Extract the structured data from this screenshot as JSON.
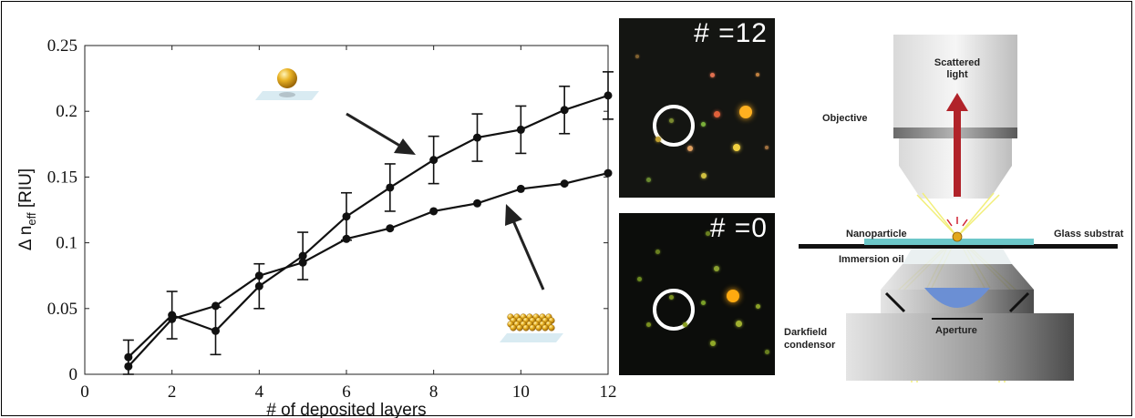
{
  "chart_data": {
    "type": "line",
    "title": "",
    "xlabel": "# of deposited layers",
    "ylabel": "Δ n",
    "ylabel_sub": "eff",
    "ylabel_unit": " [RIU]",
    "xlim": [
      0,
      12
    ],
    "ylim": [
      0,
      0.25
    ],
    "x_ticks": [
      0,
      2,
      4,
      6,
      8,
      10,
      12
    ],
    "x_tick_labels": [
      "0",
      "2",
      "4",
      "6",
      "8",
      "10",
      "12"
    ],
    "y_ticks": [
      0,
      0.05,
      0.1,
      0.15,
      0.2,
      0.25
    ],
    "y_tick_labels": [
      "0",
      "0.05",
      "0.1",
      "0.15",
      "0.2",
      "0.25"
    ],
    "grid": false,
    "series": [
      {
        "x": [
          1,
          2,
          3,
          4,
          5,
          6,
          7,
          8,
          9,
          10,
          11,
          12
        ],
        "y": [
          0.013,
          0.045,
          0.033,
          0.067,
          0.09,
          0.12,
          0.142,
          0.163,
          0.18,
          0.186,
          0.201,
          0.212
        ],
        "err": [
          0.013,
          0.018,
          0.018,
          0.017,
          0.018,
          0.018,
          0.018,
          0.018,
          0.018,
          0.018,
          0.018,
          0.018
        ]
      },
      {
        "x": [
          1,
          2,
          3,
          4,
          5,
          6,
          7,
          8,
          9,
          10,
          11,
          12
        ],
        "y": [
          0.006,
          0.042,
          0.052,
          0.075,
          0.085,
          0.103,
          0.111,
          0.124,
          0.13,
          0.141,
          0.145,
          0.153
        ]
      }
    ]
  },
  "micrographs": [
    {
      "label": "# =12"
    },
    {
      "label": "# =0"
    }
  ],
  "diagram": {
    "scattered_light": [
      "Scattered",
      "light"
    ],
    "objective": "Objective",
    "nanoparticle": "Nanoparticle",
    "glass_substrate": "Glass substrat",
    "immersion_oil": "Immersion oil",
    "darkfield_condensor": [
      "Darkfield",
      "condensor"
    ],
    "aperture": "Aperture"
  },
  "colors": {
    "accent_arrow": "#b1232a",
    "substrate": "#6cc7c9",
    "lens": "#6b8fd4",
    "particle": "#e2a81c",
    "light_rays": "#f2ef7a"
  }
}
